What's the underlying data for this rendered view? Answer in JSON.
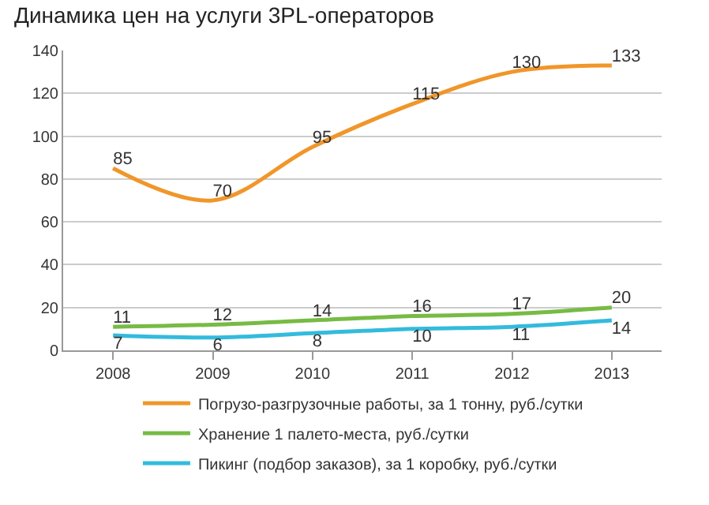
{
  "chart_data": {
    "type": "line",
    "title": "Динамика цен на услуги 3PL-операторов",
    "categories": [
      "2008",
      "2009",
      "2010",
      "2011",
      "2012",
      "2013"
    ],
    "series": [
      {
        "name": "Погрузо-разгрузочные работы, за 1 тонну, руб./сутки",
        "color": "#f0962a",
        "values": [
          85,
          70,
          95,
          115,
          130,
          133
        ]
      },
      {
        "name": "Хранение 1 палето-места, руб./сутки",
        "color": "#77bb44",
        "values": [
          11,
          12,
          14,
          16,
          17,
          20
        ]
      },
      {
        "name": "Пикинг (подбор заказов), за 1 коробку, руб./сутки",
        "color": "#33bbdd",
        "values": [
          7,
          6,
          8,
          10,
          11,
          14
        ]
      }
    ],
    "ylim": [
      0,
      140
    ],
    "yticks": [
      0,
      20,
      40,
      60,
      80,
      100,
      120,
      140
    ],
    "grid": "y",
    "legend": "bottom",
    "data_labels": true,
    "marker": "none",
    "line_style": "solid"
  }
}
